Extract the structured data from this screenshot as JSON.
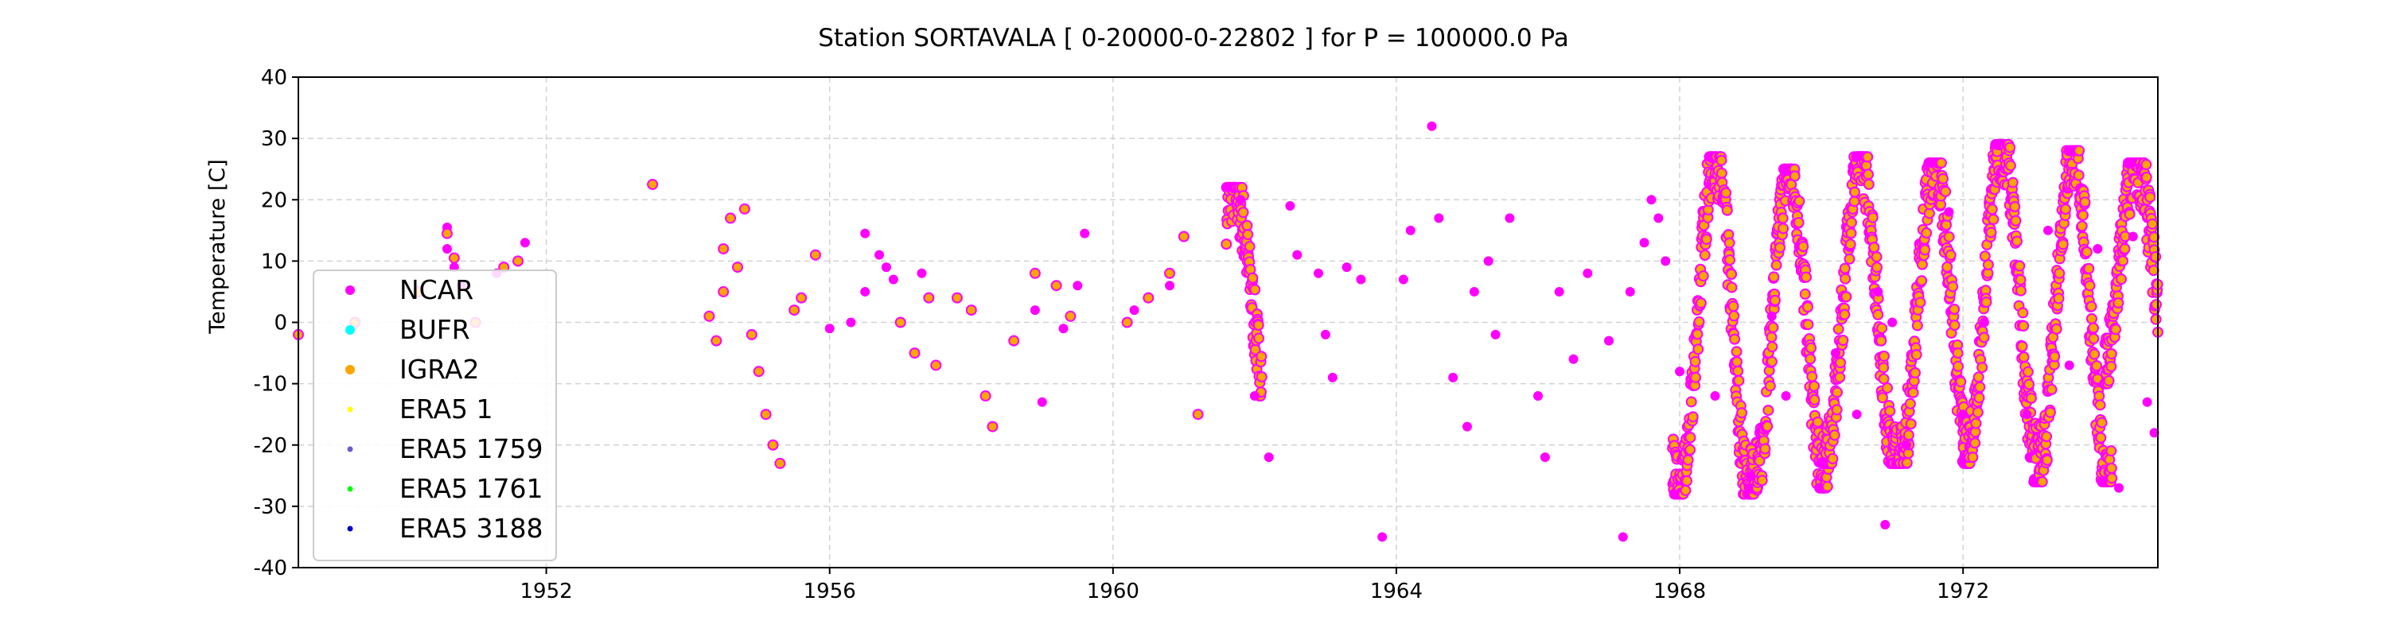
{
  "chart_data": {
    "type": "scatter",
    "title": "Station  SORTAVALA [ 0-20000-0-22802 ]  for P = 100000.0 Pa",
    "xlabel": "",
    "ylabel": "Temperature [C]",
    "xlim": [
      1948.5,
      1974.75
    ],
    "ylim": [
      -40,
      40
    ],
    "xticks": [
      1952,
      1956,
      1960,
      1964,
      1968,
      1972
    ],
    "yticks": [
      -40,
      -30,
      -20,
      -10,
      0,
      10,
      20,
      30,
      40
    ],
    "grid": true,
    "legend_position": "center-left",
    "series": [
      {
        "name": "NCAR",
        "color": "#ff00ff",
        "points": [
          [
            1950.6,
            15.5
          ],
          [
            1950.6,
            12
          ],
          [
            1950.7,
            9
          ],
          [
            1950.8,
            6
          ],
          [
            1951.3,
            8
          ],
          [
            1951.7,
            13
          ],
          [
            1956.0,
            -1
          ],
          [
            1956.3,
            0
          ],
          [
            1956.5,
            5
          ],
          [
            1956.5,
            14.5
          ],
          [
            1956.7,
            11
          ],
          [
            1956.8,
            9
          ],
          [
            1956.9,
            7
          ],
          [
            1957.3,
            8
          ],
          [
            1958.9,
            2
          ],
          [
            1959.0,
            -13
          ],
          [
            1959.3,
            -1
          ],
          [
            1959.5,
            6
          ],
          [
            1959.6,
            14.5
          ],
          [
            1960.3,
            2
          ],
          [
            1960.8,
            6
          ],
          [
            1961.8,
            20
          ],
          [
            1962.0,
            -12
          ],
          [
            1962.2,
            -22
          ],
          [
            1962.5,
            19
          ],
          [
            1962.6,
            11
          ],
          [
            1962.9,
            8
          ],
          [
            1963.0,
            -2
          ],
          [
            1963.1,
            -9
          ],
          [
            1963.3,
            9
          ],
          [
            1963.5,
            7
          ],
          [
            1963.8,
            -35
          ],
          [
            1964.1,
            7
          ],
          [
            1964.2,
            15
          ],
          [
            1964.5,
            32
          ],
          [
            1964.6,
            17
          ],
          [
            1964.8,
            -9
          ],
          [
            1965.0,
            -17
          ],
          [
            1965.1,
            5
          ],
          [
            1965.3,
            10
          ],
          [
            1965.4,
            -2
          ],
          [
            1965.6,
            17
          ],
          [
            1966.0,
            -12
          ],
          [
            1966.1,
            -22
          ],
          [
            1966.3,
            5
          ],
          [
            1966.5,
            -6
          ],
          [
            1966.7,
            8
          ],
          [
            1967.0,
            -3
          ],
          [
            1967.2,
            -35
          ],
          [
            1967.3,
            5
          ],
          [
            1967.5,
            13
          ],
          [
            1967.6,
            20
          ],
          [
            1967.7,
            17
          ],
          [
            1967.8,
            10
          ],
          [
            1968.0,
            -8
          ],
          [
            1968.5,
            -12
          ],
          [
            1969.0,
            -25
          ],
          [
            1969.3,
            1
          ],
          [
            1969.5,
            -12
          ],
          [
            1970.2,
            -5
          ],
          [
            1970.5,
            -15
          ],
          [
            1970.8,
            5
          ],
          [
            1970.9,
            -33
          ],
          [
            1971.0,
            0
          ],
          [
            1971.2,
            -20
          ],
          [
            1971.8,
            18
          ],
          [
            1972.0,
            -15
          ],
          [
            1972.3,
            0
          ],
          [
            1972.9,
            -15
          ],
          [
            1973.2,
            15
          ],
          [
            1973.5,
            -7
          ],
          [
            1973.9,
            12
          ],
          [
            1974.2,
            -27
          ],
          [
            1974.4,
            14
          ],
          [
            1974.6,
            -13
          ],
          [
            1974.7,
            -18
          ]
        ]
      },
      {
        "name": "BUFR",
        "color": "#00ffff",
        "points": []
      },
      {
        "name": "IGRA2",
        "color": "#ffa500",
        "points": [
          [
            1948.5,
            -2
          ],
          [
            1949.3,
            0
          ],
          [
            1950.2,
            5
          ],
          [
            1950.6,
            14.5
          ],
          [
            1950.7,
            10.5
          ],
          [
            1951.0,
            0
          ],
          [
            1951.4,
            9
          ],
          [
            1951.6,
            10
          ],
          [
            1953.5,
            22.5
          ],
          [
            1954.3,
            1
          ],
          [
            1954.4,
            -3
          ],
          [
            1954.5,
            5
          ],
          [
            1954.5,
            12
          ],
          [
            1954.6,
            17
          ],
          [
            1954.7,
            9
          ],
          [
            1954.8,
            18.5
          ],
          [
            1954.9,
            -2
          ],
          [
            1955.0,
            -8
          ],
          [
            1955.1,
            -15
          ],
          [
            1955.2,
            -20
          ],
          [
            1955.3,
            -23
          ],
          [
            1955.5,
            2
          ],
          [
            1955.6,
            4
          ],
          [
            1955.8,
            11
          ],
          [
            1957.0,
            0
          ],
          [
            1957.2,
            -5
          ],
          [
            1957.4,
            4
          ],
          [
            1957.5,
            -7
          ],
          [
            1957.8,
            4
          ],
          [
            1958.0,
            2
          ],
          [
            1958.2,
            -12
          ],
          [
            1958.3,
            -17
          ],
          [
            1958.6,
            -3
          ],
          [
            1958.9,
            8
          ],
          [
            1959.2,
            6
          ],
          [
            1959.4,
            1
          ],
          [
            1960.2,
            0
          ],
          [
            1960.5,
            4
          ],
          [
            1960.8,
            8
          ],
          [
            1961.0,
            14
          ],
          [
            1961.2,
            -15
          ]
        ]
      },
      {
        "name": "ERA5 1",
        "color": "#ffff00",
        "points": []
      },
      {
        "name": "ERA5 1759",
        "color": "#6a5acd",
        "points": []
      },
      {
        "name": "ERA5 1761",
        "color": "#00ff00",
        "points": []
      },
      {
        "name": "ERA5 3188",
        "color": "#0000cd",
        "points": []
      }
    ],
    "dense_cycles": [
      {
        "start": 1961.6,
        "end": 1962.1,
        "peak": 22,
        "trough": -12,
        "peak_at": 1961.7
      },
      {
        "start": 1967.9,
        "end": 1969.1,
        "peak": 27,
        "trough": -28,
        "peak_at": 1968.5
      },
      {
        "start": 1969.0,
        "end": 1970.1,
        "peak": 25,
        "trough": -27,
        "peak_at": 1969.55
      },
      {
        "start": 1970.0,
        "end": 1971.1,
        "peak": 27,
        "trough": -23,
        "peak_at": 1970.55
      },
      {
        "start": 1971.0,
        "end": 1972.1,
        "peak": 26,
        "trough": -23,
        "peak_at": 1971.6
      },
      {
        "start": 1972.0,
        "end": 1973.1,
        "peak": 29,
        "trough": -22,
        "peak_at": 1972.55
      },
      {
        "start": 1973.0,
        "end": 1974.1,
        "peak": 28,
        "trough": -26,
        "peak_at": 1973.55
      },
      {
        "start": 1974.0,
        "end": 1974.75,
        "peak": 26,
        "trough": -10,
        "peak_at": 1974.45
      }
    ]
  }
}
